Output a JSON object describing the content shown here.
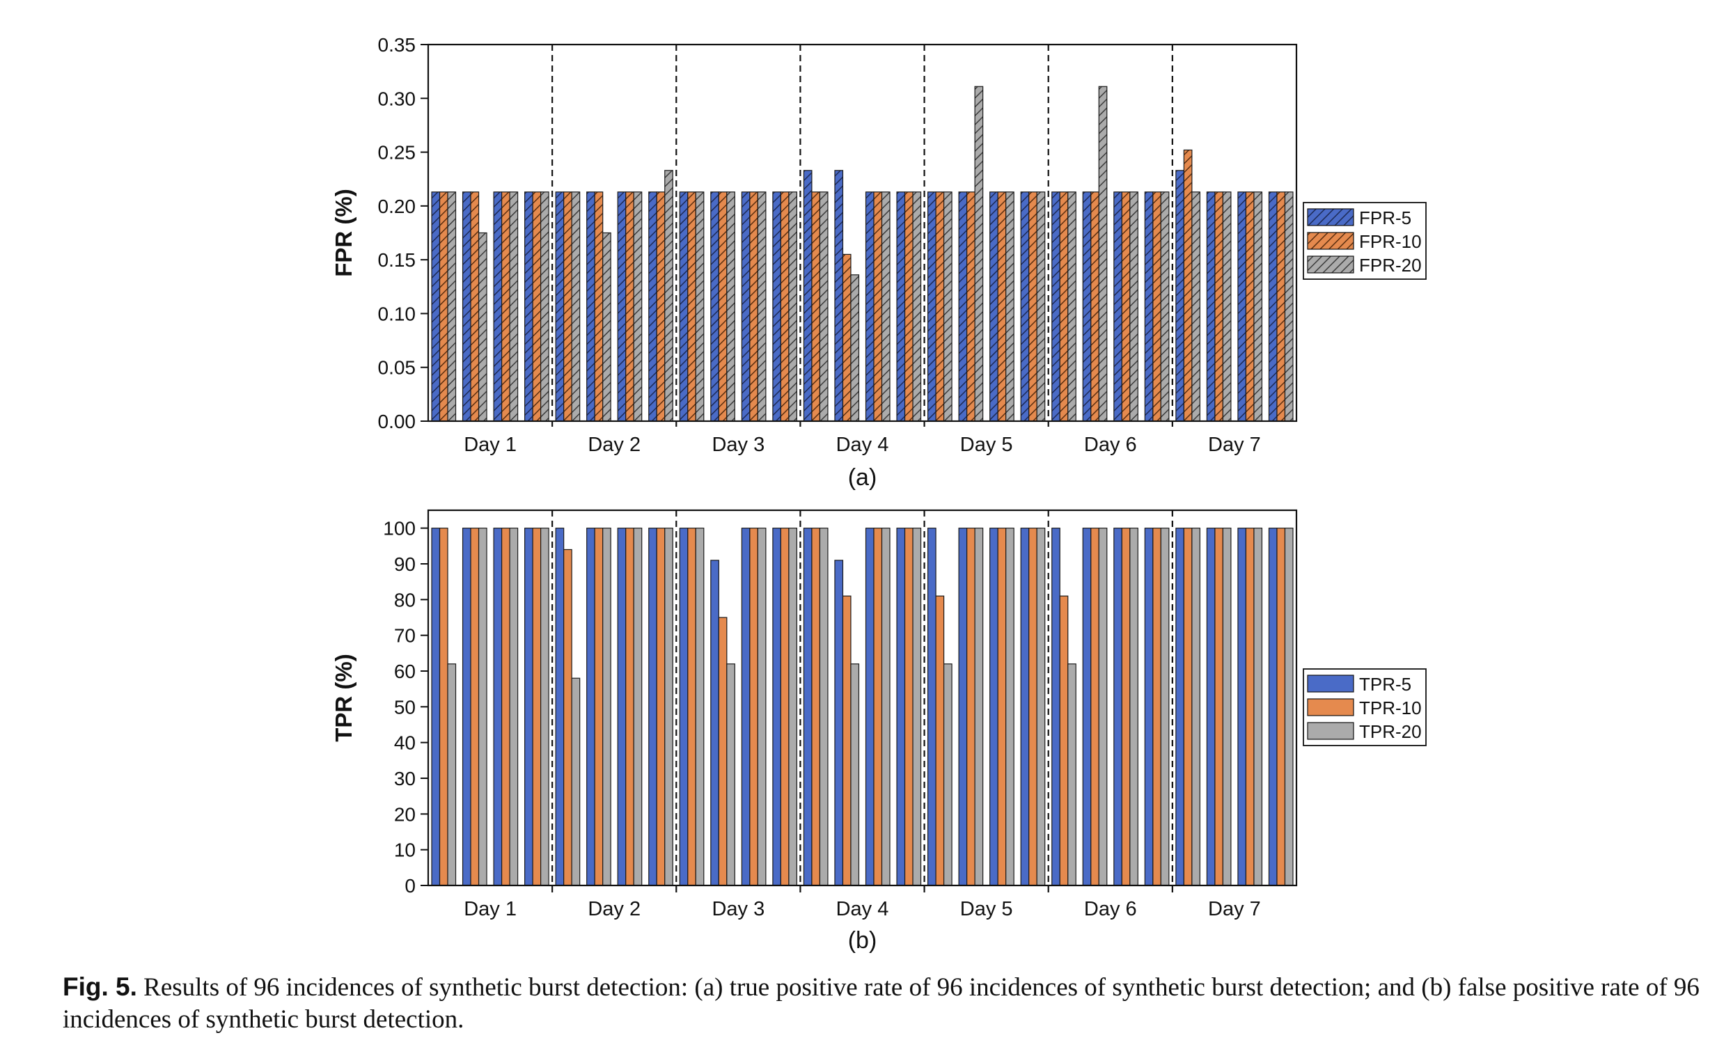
{
  "caption": {
    "label": "Fig. 5.",
    "text": "Results of 96 incidences of synthetic burst detection: (a) true positive rate of 96 incidences of synthetic burst detection; and (b) false positive rate of 96 incidences of synthetic burst detection."
  },
  "colors": {
    "series1": "#4a6bc7",
    "series2": "#e58a4e",
    "series3": "#ababab"
  },
  "chart_data": [
    {
      "type": "bar",
      "panel_label": "(a)",
      "ylabel": "FPR (%)",
      "ylim": [
        0,
        0.35
      ],
      "yticks": [
        "0.00",
        "0.05",
        "0.10",
        "0.15",
        "0.20",
        "0.25",
        "0.30",
        "0.35"
      ],
      "ytick_values": [
        0,
        0.05,
        0.1,
        0.15,
        0.2,
        0.25,
        0.3,
        0.35
      ],
      "hatched": true,
      "legend_position": "right",
      "groups": [
        "Day 1",
        "Day 2",
        "Day 3",
        "Day 4",
        "Day 5",
        "Day 6",
        "Day 7"
      ],
      "bars_per_group": 4,
      "series": [
        {
          "name": "FPR-5",
          "values": [
            0.213,
            0.213,
            0.213,
            0.213,
            0.213,
            0.213,
            0.213,
            0.213,
            0.213,
            0.213,
            0.213,
            0.213,
            0.233,
            0.233,
            0.213,
            0.213,
            0.213,
            0.213,
            0.213,
            0.213,
            0.213,
            0.213,
            0.213,
            0.213,
            0.233,
            0.213,
            0.213,
            0.213
          ]
        },
        {
          "name": "FPR-10",
          "values": [
            0.213,
            0.213,
            0.213,
            0.213,
            0.213,
            0.213,
            0.213,
            0.213,
            0.213,
            0.213,
            0.213,
            0.213,
            0.213,
            0.155,
            0.213,
            0.213,
            0.213,
            0.213,
            0.213,
            0.213,
            0.213,
            0.213,
            0.213,
            0.213,
            0.252,
            0.213,
            0.213,
            0.213
          ]
        },
        {
          "name": "FPR-20",
          "values": [
            0.213,
            0.175,
            0.213,
            0.213,
            0.213,
            0.175,
            0.213,
            0.233,
            0.213,
            0.213,
            0.213,
            0.213,
            0.213,
            0.136,
            0.213,
            0.213,
            0.213,
            0.311,
            0.213,
            0.213,
            0.213,
            0.311,
            0.213,
            0.213,
            0.213,
            0.213,
            0.213,
            0.213
          ]
        }
      ]
    },
    {
      "type": "bar",
      "panel_label": "(b)",
      "ylabel": "TPR (%)",
      "ylim": [
        0,
        105
      ],
      "yticks": [
        "0",
        "10",
        "20",
        "30",
        "40",
        "50",
        "60",
        "70",
        "80",
        "90",
        "100"
      ],
      "ytick_values": [
        0,
        10,
        20,
        30,
        40,
        50,
        60,
        70,
        80,
        90,
        100
      ],
      "hatched": false,
      "legend_position": "right",
      "groups": [
        "Day 1",
        "Day 2",
        "Day 3",
        "Day 4",
        "Day 5",
        "Day 6",
        "Day 7"
      ],
      "bars_per_group": 4,
      "series": [
        {
          "name": "TPR-5",
          "values": [
            100,
            100,
            100,
            100,
            100,
            100,
            100,
            100,
            100,
            91,
            100,
            100,
            100,
            91,
            100,
            100,
            100,
            100,
            100,
            100,
            100,
            100,
            100,
            100,
            100,
            100,
            100,
            100
          ]
        },
        {
          "name": "TPR-10",
          "values": [
            100,
            100,
            100,
            100,
            94,
            100,
            100,
            100,
            100,
            75,
            100,
            100,
            100,
            81,
            100,
            100,
            81,
            100,
            100,
            100,
            81,
            100,
            100,
            100,
            100,
            100,
            100,
            100
          ]
        },
        {
          "name": "TPR-20",
          "values": [
            62,
            100,
            100,
            100,
            58,
            100,
            100,
            100,
            100,
            62,
            100,
            100,
            100,
            62,
            100,
            100,
            62,
            100,
            100,
            100,
            62,
            100,
            100,
            100,
            100,
            100,
            100,
            100
          ]
        }
      ]
    }
  ]
}
